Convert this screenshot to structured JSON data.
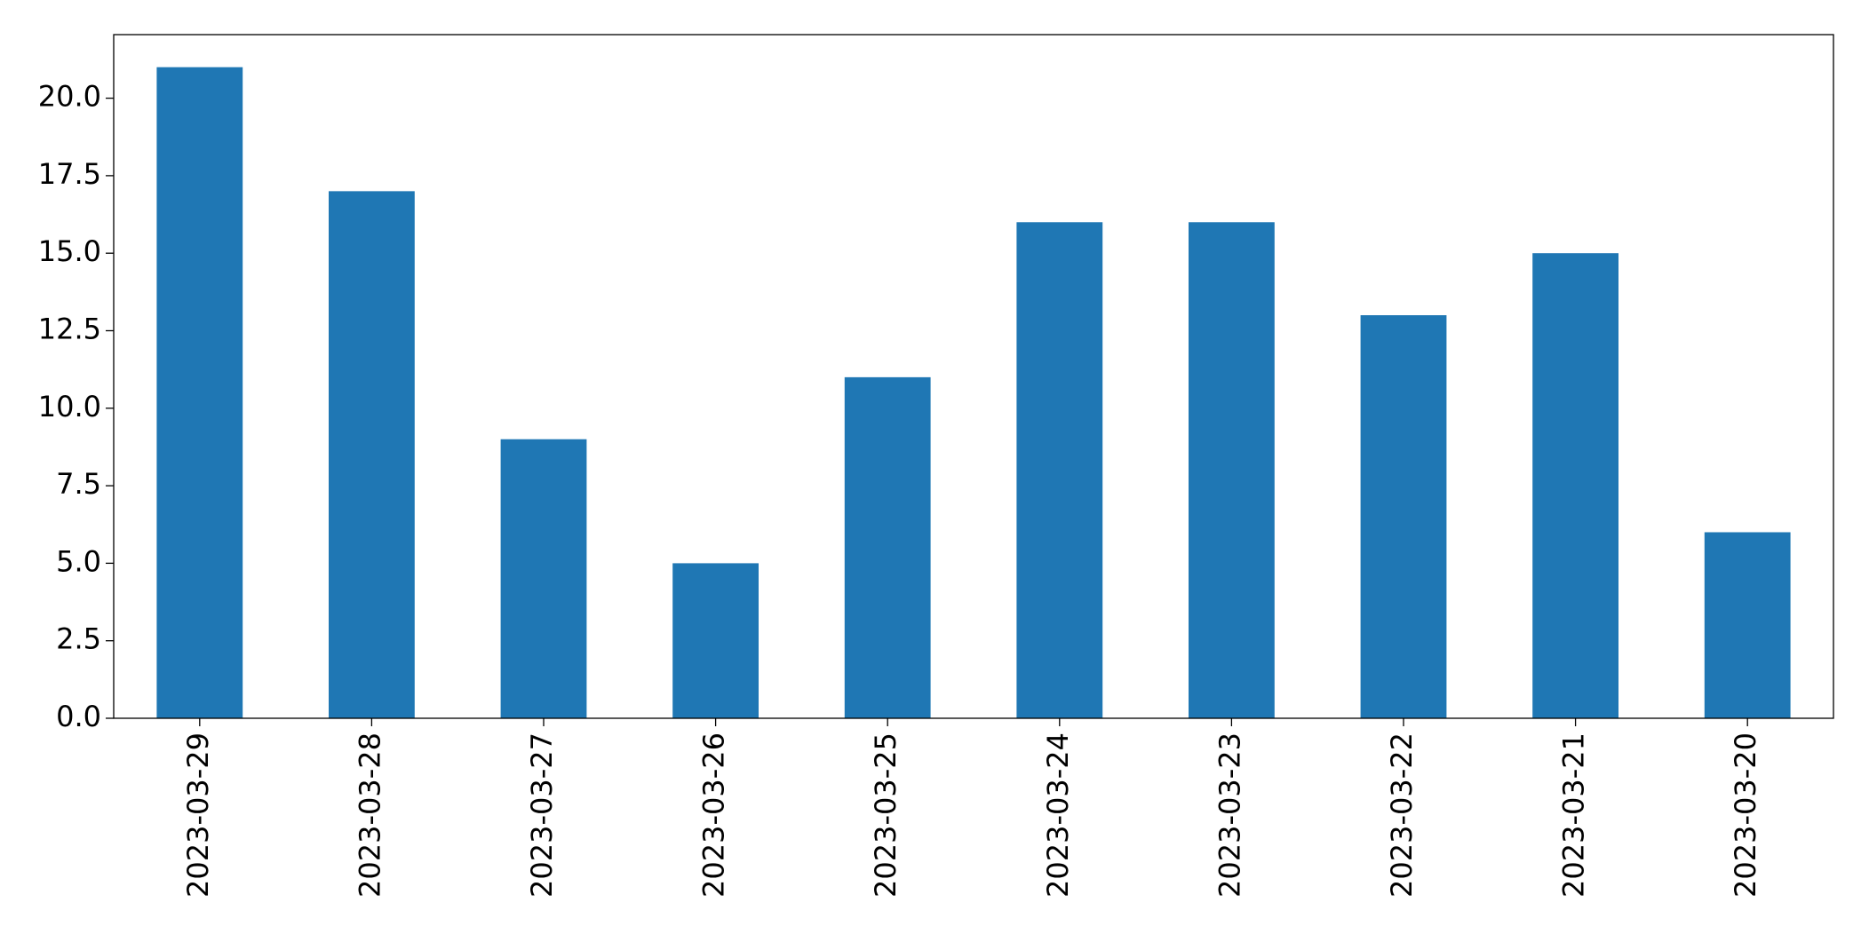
{
  "chart_data": {
    "type": "bar",
    "categories": [
      "2023-03-29",
      "2023-03-28",
      "2023-03-27",
      "2023-03-26",
      "2023-03-25",
      "2023-03-24",
      "2023-03-23",
      "2023-03-22",
      "2023-03-21",
      "2023-03-20"
    ],
    "values": [
      21,
      17,
      9,
      5,
      11,
      16,
      16,
      13,
      15,
      6
    ],
    "color": "#1f77b4",
    "ylim": [
      0,
      22.05
    ],
    "yticks": [
      {
        "value": 0,
        "label": "0.0"
      },
      2.5,
      {
        "value": 5,
        "label": "5.0"
      },
      7.5,
      {
        "value": 10,
        "label": "10.0"
      },
      12.5,
      {
        "value": 15,
        "label": "15.0"
      },
      17.5,
      {
        "value": 20,
        "label": "20.0"
      }
    ],
    "grid": false
  }
}
